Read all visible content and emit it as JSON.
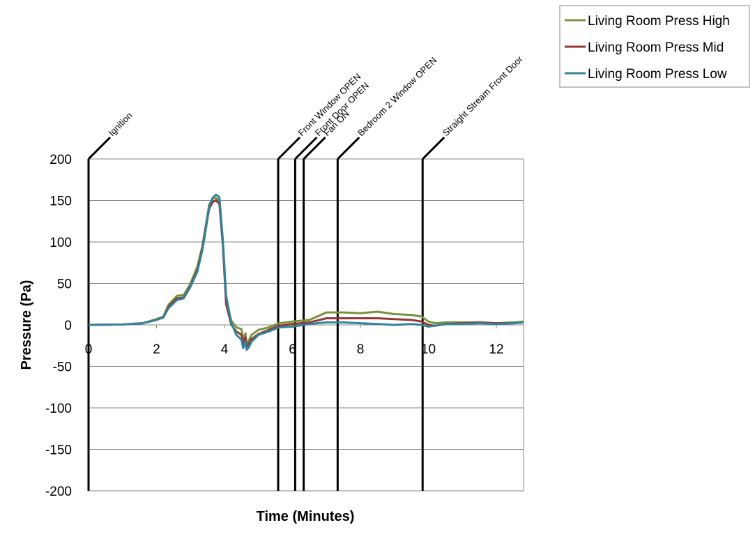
{
  "chart_data": {
    "type": "line",
    "xlabel": "Time (Minutes)",
    "ylabel": "Pressure (Pa)",
    "xlim": [
      0,
      12.8
    ],
    "ylim": [
      -200,
      200
    ],
    "xticks": [
      0,
      2,
      4,
      6,
      8,
      10,
      12
    ],
    "yticks": [
      200,
      150,
      100,
      50,
      0,
      -50,
      -100,
      -150,
      -200
    ],
    "grid": "horizontal",
    "legend_position": "top-right",
    "events": [
      {
        "time": 0,
        "label": "Ignition"
      },
      {
        "time": 5.58,
        "label": "Front Window OPEN"
      },
      {
        "time": 6.08,
        "label": "Front Door OPEN"
      },
      {
        "time": 6.33,
        "label": "Fan ON"
      },
      {
        "time": 7.33,
        "label": "Bedroom 2 Window OPEN"
      },
      {
        "time": 9.83,
        "label": "Straight Stream Front Door"
      }
    ],
    "series": [
      {
        "name": "Living Room Press High",
        "color": "#77933C",
        "x": [
          0,
          1,
          1.6,
          2,
          2.2,
          2.35,
          2.6,
          2.8,
          3,
          3.2,
          3.35,
          3.45,
          3.55,
          3.65,
          3.75,
          3.85,
          3.95,
          4.05,
          4.2,
          4.35,
          4.5,
          4.55,
          4.62,
          4.65,
          4.7,
          4.8,
          5,
          5.3,
          5.6,
          6,
          6.5,
          7,
          7.5,
          8,
          8.5,
          9,
          9.5,
          9.8,
          10,
          10.2,
          10.5,
          11,
          11.5,
          12,
          12.5,
          12.8
        ],
        "y": [
          0,
          0.5,
          2,
          7,
          10,
          24,
          35,
          36,
          50,
          70,
          95,
          120,
          145,
          152,
          153,
          150,
          100,
          30,
          5,
          -3,
          -5,
          -18,
          -10,
          -25,
          -20,
          -12,
          -6,
          -3,
          2,
          4,
          6,
          15,
          15,
          14,
          16,
          13,
          12,
          10,
          4,
          2,
          3,
          3,
          3,
          2,
          3,
          4
        ]
      },
      {
        "name": "Living Room Press Mid",
        "color": "#943634",
        "x": [
          0,
          1,
          1.6,
          2,
          2.2,
          2.35,
          2.6,
          2.8,
          3,
          3.2,
          3.35,
          3.45,
          3.55,
          3.65,
          3.75,
          3.85,
          3.95,
          4.05,
          4.2,
          4.35,
          4.5,
          4.55,
          4.62,
          4.65,
          4.7,
          4.8,
          5,
          5.3,
          5.6,
          6,
          6.5,
          7,
          7.5,
          8,
          8.5,
          9,
          9.5,
          9.8,
          10,
          10.2,
          10.5,
          11,
          11.5,
          12,
          12.5,
          12.8
        ],
        "y": [
          0,
          0.5,
          2,
          6,
          9,
          22,
          32,
          33,
          47,
          66,
          92,
          117,
          140,
          148,
          150,
          146,
          97,
          25,
          0,
          -8,
          -12,
          -22,
          -15,
          -28,
          -24,
          -17,
          -11,
          -6,
          -1,
          1,
          3,
          8,
          8,
          8,
          8,
          7,
          6,
          4,
          0,
          -1,
          1,
          2,
          3,
          2,
          2,
          3
        ]
      },
      {
        "name": "Living Room Press Low",
        "color": "#31849B",
        "x": [
          0,
          1,
          1.6,
          2,
          2.2,
          2.35,
          2.6,
          2.8,
          3,
          3.2,
          3.35,
          3.45,
          3.55,
          3.65,
          3.75,
          3.85,
          3.95,
          4.05,
          4.2,
          4.35,
          4.5,
          4.55,
          4.62,
          4.65,
          4.7,
          4.8,
          5,
          5.3,
          5.6,
          6,
          6.5,
          7,
          7.5,
          8,
          8.5,
          9,
          9.5,
          9.8,
          10,
          10.2,
          10.5,
          11,
          11.5,
          12,
          12.5,
          12.8
        ],
        "y": [
          0,
          0.5,
          2,
          6,
          9,
          20,
          30,
          32,
          46,
          64,
          90,
          115,
          143,
          153,
          157,
          154,
          103,
          35,
          2,
          -12,
          -18,
          -28,
          -20,
          -30,
          -28,
          -20,
          -12,
          -8,
          -3,
          -2,
          1,
          3,
          3,
          2,
          1,
          0,
          1,
          0,
          -2,
          -1,
          1,
          1,
          2,
          1,
          2,
          3
        ]
      }
    ]
  }
}
